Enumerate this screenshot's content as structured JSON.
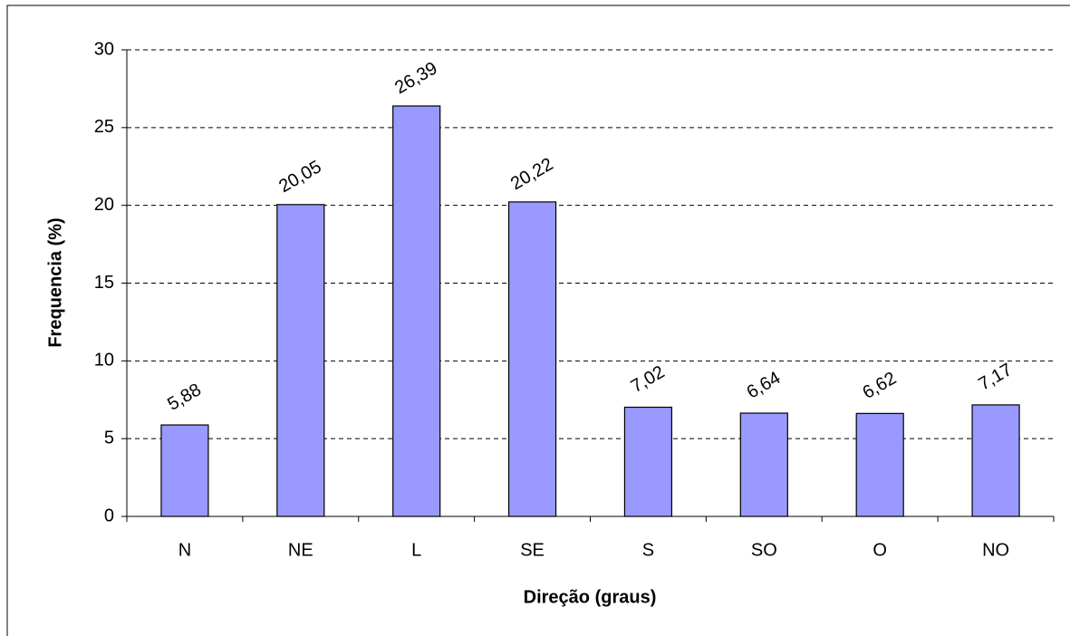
{
  "chart_data": {
    "type": "bar",
    "x_label": "Direção (graus)",
    "y_label": "Frequencia (%)",
    "categories": [
      "N",
      "NE",
      "L",
      "SE",
      "S",
      "SO",
      "O",
      "NO"
    ],
    "values": [
      5.88,
      20.05,
      26.39,
      20.22,
      7.02,
      6.64,
      6.62,
      7.17
    ],
    "value_labels": [
      "5,88",
      "20,05",
      "26,39",
      "20,22",
      "7,02",
      "6,64",
      "6,62",
      "7,17"
    ],
    "color": "#9999ff",
    "ylim": [
      0,
      30
    ],
    "yticks": [
      0,
      5,
      10,
      15,
      20,
      25,
      30
    ],
    "grid": true
  }
}
